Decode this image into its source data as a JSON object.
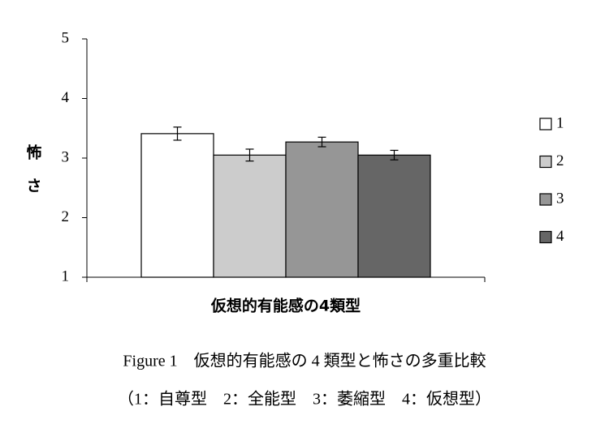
{
  "chart_data": {
    "type": "bar",
    "x_label": "仮想的有能感の4類型",
    "y_label": "怖さ",
    "caption": [
      "Figure 1　仮想的有能感の 4 類型と怖さの多重比較",
      "（1：自尊型　2：全能型　3：萎縮型　4：仮想型）"
    ],
    "categories": [
      null
    ],
    "series": [
      {
        "name": "1",
        "color": "#ffffff",
        "values": [
          3.41
        ],
        "errors": [
          0.11
        ]
      },
      {
        "name": "2",
        "color": "#cccccc",
        "values": [
          3.05
        ],
        "errors": [
          0.1
        ]
      },
      {
        "name": "3",
        "color": "#969696",
        "values": [
          3.27
        ],
        "errors": [
          0.08
        ]
      },
      {
        "name": "4",
        "color": "#666666",
        "values": [
          3.05
        ],
        "errors": [
          0.08
        ]
      }
    ],
    "ylim": [
      1,
      5
    ],
    "yticks": [
      1,
      2,
      3,
      4,
      5
    ],
    "grid": false,
    "legend": "right"
  }
}
